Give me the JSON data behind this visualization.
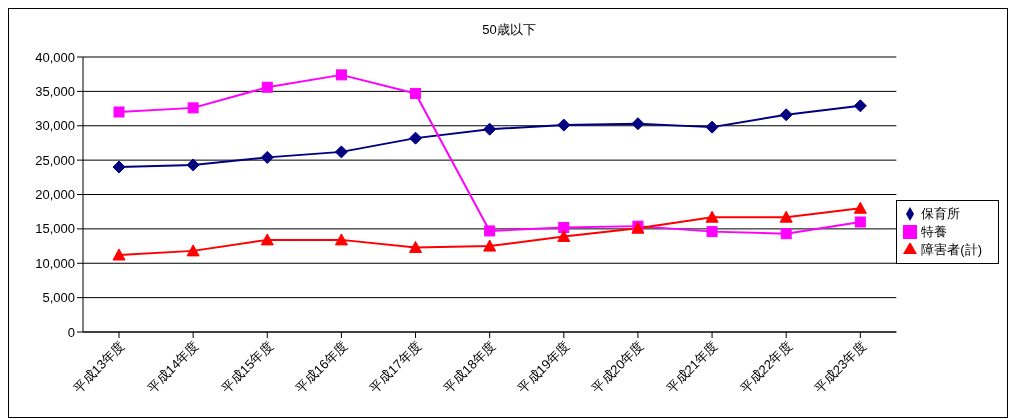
{
  "chart_data": {
    "type": "line",
    "title": "50歳以下",
    "categories": [
      "平成13年度",
      "平成14年度",
      "平成15年度",
      "平成16年度",
      "平成17年度",
      "平成18年度",
      "平成19年度",
      "平成20年度",
      "平成21年度",
      "平成22年度",
      "平成23年度"
    ],
    "series": [
      {
        "name": "保育所",
        "color": "#000080",
        "marker": "diamond",
        "values": [
          24000,
          24300,
          25400,
          26200,
          28200,
          29500,
          30100,
          30300,
          29800,
          31600,
          32900
        ]
      },
      {
        "name": "特養",
        "color": "#ff00ff",
        "marker": "square",
        "values": [
          32000,
          32600,
          35600,
          37400,
          34700,
          14700,
          15200,
          15400,
          14600,
          14300,
          16000
        ]
      },
      {
        "name": "障害者(計)",
        "color": "#ff0000",
        "marker": "triangle",
        "values": [
          11200,
          11800,
          13400,
          13400,
          12300,
          12500,
          13900,
          15100,
          16700,
          16700,
          18000
        ]
      }
    ],
    "ylim": [
      0,
      40000
    ],
    "yticks": [
      0,
      {
        "value": 5000,
        "label": "5,000"
      },
      {
        "value": 10000,
        "label": "10,000"
      },
      {
        "value": 15000,
        "label": "15,000"
      },
      {
        "value": 20000,
        "label": "20,000"
      },
      {
        "value": 25000,
        "label": "25,000"
      },
      {
        "value": 30000,
        "label": "30,000"
      },
      {
        "value": 35000,
        "label": "35,000"
      },
      {
        "value": 40000,
        "label": "40,000"
      }
    ],
    "grid": "y",
    "legend": "right"
  }
}
